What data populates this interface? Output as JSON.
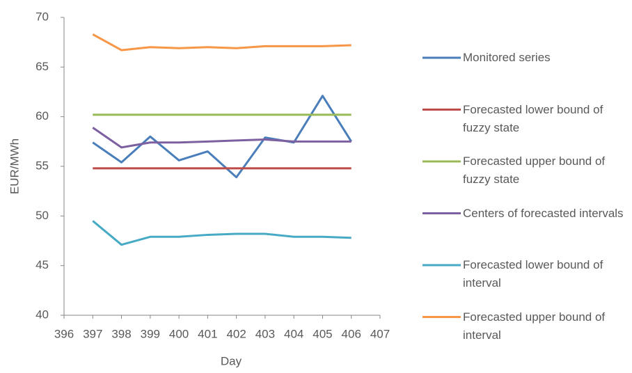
{
  "chart_data": {
    "type": "line",
    "x": [
      397,
      398,
      399,
      400,
      401,
      402,
      403,
      404,
      405,
      406
    ],
    "series": [
      {
        "name": "Monitored series",
        "color": "#4a7ebb",
        "values": [
          57.4,
          55.4,
          58.0,
          55.6,
          56.5,
          53.9,
          57.9,
          57.4,
          62.1,
          57.5
        ]
      },
      {
        "name": "Forecasted lower bound of fuzzy state",
        "color": "#be4b48",
        "values": [
          54.8,
          54.8,
          54.8,
          54.8,
          54.8,
          54.8,
          54.8,
          54.8,
          54.8,
          54.8
        ]
      },
      {
        "name": "Forecasted upper bound of fuzzy state",
        "color": "#98b954",
        "values": [
          60.2,
          60.2,
          60.2,
          60.2,
          60.2,
          60.2,
          60.2,
          60.2,
          60.2,
          60.2
        ]
      },
      {
        "name": "Centers of forecasted intervals",
        "color": "#7d60a0",
        "values": [
          58.9,
          56.9,
          57.4,
          57.4,
          57.5,
          57.6,
          57.7,
          57.5,
          57.5,
          57.5
        ]
      },
      {
        "name": "Forecasted lower bound of interval",
        "color": "#46aac5",
        "values": [
          49.5,
          47.1,
          47.9,
          47.9,
          48.1,
          48.2,
          48.2,
          47.9,
          47.9,
          47.8
        ]
      },
      {
        "name": "Forecasted upper bound of interval",
        "color": "#f79646",
        "values": [
          68.3,
          66.7,
          67.0,
          66.9,
          67.0,
          66.9,
          67.1,
          67.1,
          67.1,
          67.2
        ]
      }
    ],
    "xlabel": "Day",
    "ylabel": "EUR/MWh",
    "xlim": [
      396,
      407
    ],
    "xticks": [
      396,
      397,
      398,
      399,
      400,
      401,
      402,
      403,
      404,
      405,
      406,
      407
    ],
    "ylim": [
      40,
      70
    ],
    "yticks": [
      40,
      45,
      50,
      55,
      60,
      65,
      70
    ],
    "grid": false,
    "legend": "right"
  }
}
